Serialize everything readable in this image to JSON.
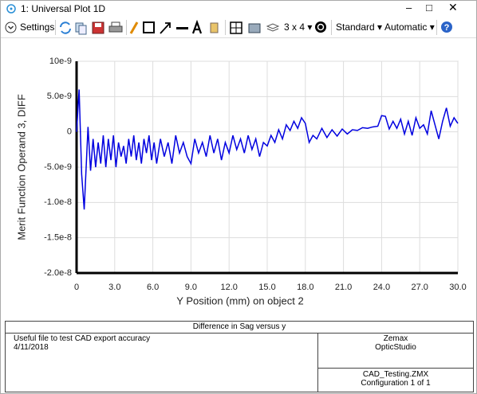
{
  "window": {
    "title": "1: Universal Plot 1D"
  },
  "toolbar": {
    "settings": "Settings",
    "layout": "3 x 4",
    "style": "Standard",
    "scale": "Automatic"
  },
  "chart_data": {
    "type": "line",
    "x_label": "Y Position (mm) on object 2",
    "y_label": "Merit Function Operand 3, DIFF",
    "color": "#0000e0",
    "grid": true,
    "xlim": [
      0,
      30
    ],
    "xticks": [
      0,
      {
        "value": 3,
        "label": "3.0"
      },
      {
        "value": 6,
        "label": "6.0"
      },
      {
        "value": 9,
        "label": "9.0"
      },
      {
        "value": 12,
        "label": "12.0"
      },
      {
        "value": 15,
        "label": "15.0"
      },
      {
        "value": 18,
        "label": "18.0"
      },
      {
        "value": 21,
        "label": "21.0"
      },
      {
        "value": 24,
        "label": "24.0"
      },
      {
        "value": 27,
        "label": "27.0"
      },
      {
        "value": 30,
        "label": "30.0"
      }
    ],
    "ylim": [
      -2e-08,
      1e-08
    ],
    "yticks": [
      {
        "value": 1e-08,
        "label": "10e-9"
      },
      {
        "value": 5e-09,
        "label": "5.0e-9"
      },
      0,
      {
        "value": -5e-09,
        "label": "-5.0e-9"
      },
      {
        "value": -1e-08,
        "label": "-1.0e-8"
      },
      {
        "value": -1.5e-08,
        "label": "-1.5e-8"
      },
      {
        "value": -2e-08,
        "label": "-2.0e-8"
      }
    ],
    "x": [
      0,
      0.2,
      0.4,
      0.6,
      0.9,
      1.1,
      1.3,
      1.5,
      1.7,
      1.9,
      2.1,
      2.3,
      2.5,
      2.7,
      2.9,
      3.1,
      3.3,
      3.5,
      3.7,
      3.9,
      4.1,
      4.3,
      4.5,
      4.7,
      4.9,
      5.1,
      5.3,
      5.5,
      5.7,
      5.9,
      6.1,
      6.3,
      6.6,
      6.9,
      7.2,
      7.5,
      7.8,
      8.1,
      8.4,
      8.7,
      9.0,
      9.3,
      9.6,
      9.9,
      10.2,
      10.5,
      10.8,
      11.1,
      11.4,
      11.7,
      12.0,
      12.3,
      12.6,
      12.9,
      13.2,
      13.5,
      13.8,
      14.1,
      14.4,
      14.7,
      15.0,
      15.3,
      15.6,
      15.9,
      16.2,
      16.5,
      16.8,
      17.1,
      17.4,
      17.7,
      18.0,
      18.3,
      18.6,
      18.9,
      19.3,
      19.7,
      20.1,
      20.5,
      20.9,
      21.3,
      21.7,
      22.1,
      22.5,
      22.9,
      23.3,
      23.7,
      24.0,
      24.3,
      24.6,
      24.9,
      25.2,
      25.5,
      25.8,
      26.1,
      26.4,
      26.7,
      27.0,
      27.3,
      27.6,
      27.9,
      28.2,
      28.5,
      28.8,
      29.1,
      29.4,
      29.7,
      30.0
    ],
    "values": [
      0,
      6e-09,
      -6e-09,
      -1.1e-08,
      7e-10,
      -5.5e-09,
      -1e-09,
      -5e-09,
      -1.5e-09,
      -4.5e-09,
      -5e-10,
      -5e-09,
      -1e-09,
      -4e-09,
      -5e-10,
      -5e-09,
      -1.5e-09,
      -3.5e-09,
      -2e-09,
      -4.5e-09,
      -1e-09,
      -3.5e-09,
      -5e-10,
      -4e-09,
      -1.5e-09,
      -4.5e-09,
      -1e-09,
      -3e-09,
      -5e-10,
      -4e-09,
      -1.5e-09,
      -4.5e-09,
      -1e-09,
      -3.5e-09,
      -1.5e-09,
      -4.5e-09,
      -5e-10,
      -3e-09,
      -1.5e-09,
      -3.5e-09,
      -4.5e-09,
      -1e-09,
      -3e-09,
      -1.5e-09,
      -3.5e-09,
      -5e-10,
      -3e-09,
      -1e-09,
      -4e-09,
      -1.5e-09,
      -3e-09,
      -5e-10,
      -2.5e-09,
      -1e-09,
      -3e-09,
      -5e-10,
      -2.5e-09,
      -1e-09,
      -3.5e-09,
      -1.5e-09,
      -2e-09,
      -5e-10,
      -1.5e-09,
      3e-10,
      -1e-09,
      1e-09,
      2e-10,
      1.5e-09,
      5e-10,
      2e-09,
      1.2e-09,
      -1.5e-09,
      -5e-10,
      -1e-09,
      5e-10,
      -8e-10,
      3e-10,
      -6e-10,
      4e-10,
      -3e-10,
      3e-10,
      2e-10,
      6e-10,
      5e-10,
      7e-10,
      8e-10,
      2.3e-09,
      2.2e-09,
      4e-10,
      1.5e-09,
      5e-10,
      1.8e-09,
      -3e-10,
      1.5e-09,
      -5e-10,
      2e-09,
      5e-10,
      1e-09,
      -3e-10,
      3e-09,
      1e-09,
      -1e-09,
      1.5e-09,
      3.4e-09,
      8e-10,
      2e-09,
      1.2e-09
    ]
  },
  "footer": {
    "title": "Difference in Sag versus y",
    "notes": [
      "Useful file to test CAD export accuracy",
      "4/11/2018"
    ],
    "company": [
      "Zemax",
      "OpticStudio"
    ],
    "file": [
      "CAD_Testing.ZMX",
      "Configuration 1 of 1"
    ]
  }
}
